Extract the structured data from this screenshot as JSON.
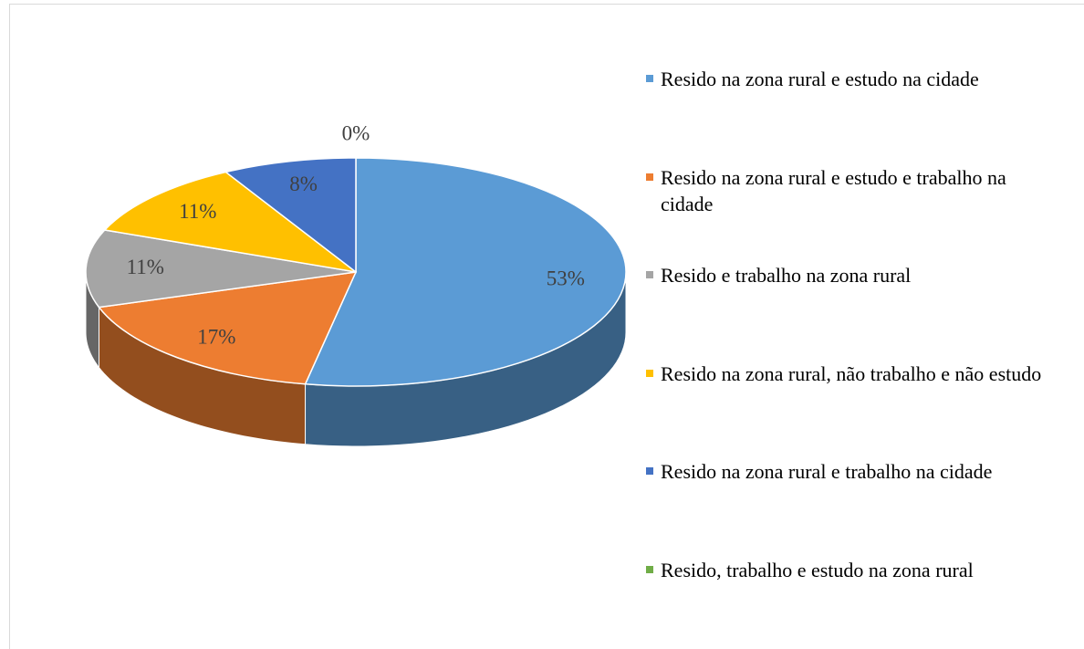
{
  "chart_data": {
    "type": "pie",
    "categories": [
      "Resido na zona rural e estudo na cidade",
      "Resido na zona rural e estudo e trabalho na cidade",
      "Resido e trabalho na zona rural",
      "Resido na zona rural, não trabalho e não estudo",
      "Resido na zona rural e trabalho na cidade",
      "Resido, trabalho e estudo na zona rural"
    ],
    "values": [
      53,
      17,
      11,
      11,
      8,
      0
    ],
    "value_labels": [
      "53%",
      "17%",
      "11%",
      "11%",
      "8%",
      "0%"
    ],
    "colors": [
      "#5b9bd5",
      "#ed7d31",
      "#a5a5a5",
      "#ffc000",
      "#4472c4",
      "#70ad47"
    ],
    "legend": "right"
  }
}
